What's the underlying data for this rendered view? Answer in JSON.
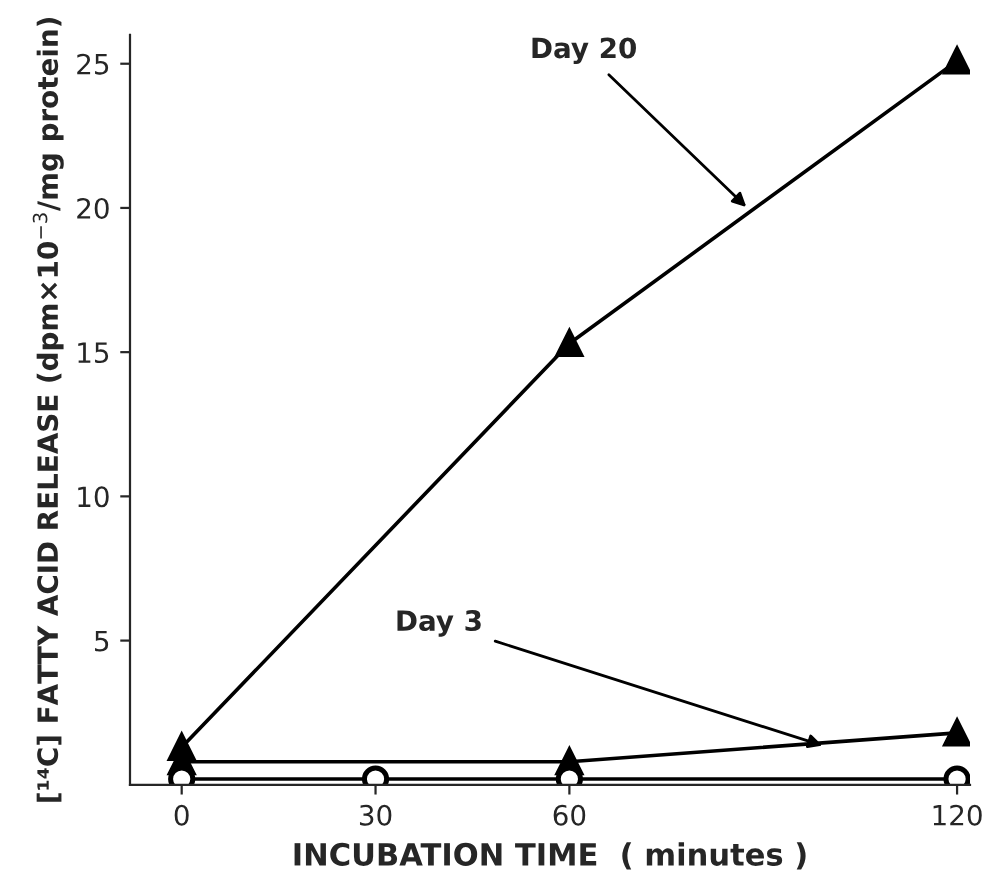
{
  "chart_data": {
    "type": "line",
    "series": [
      {
        "color": "#000000",
        "marker": "triangle",
        "x": [
          0,
          60,
          120
        ],
        "values": [
          1.3,
          15.3,
          25.1
        ]
      },
      {
        "color": "#000000",
        "marker": "triangle",
        "x": [
          0,
          60,
          120
        ],
        "values": [
          0.8,
          0.8,
          1.8
        ]
      },
      {
        "color": "#000000",
        "marker": "circle",
        "x": [
          0,
          30,
          60,
          120
        ],
        "values": [
          0.2,
          0.2,
          0.2,
          0.2
        ]
      }
    ],
    "xlabel": "INCUBATION TIME  ( minutes )",
    "ylabel": "[¹⁴C] FATTY ACID RELEASE (dpm×10$^{−3}$/mg protein)",
    "xlim": [
      -8,
      122
    ],
    "xticks": [
      0,
      30,
      60,
      120
    ],
    "ylim": [
      0,
      26
    ],
    "yticks": [
      5,
      10,
      15,
      20,
      25
    ],
    "grid": false,
    "legend": false,
    "line_style": "solid",
    "annotations": [
      {
        "text": "Day 20",
        "x": 88,
        "y": 19.9
      },
      {
        "text": "Day 3",
        "x": 100,
        "y": 1.3
      }
    ]
  }
}
